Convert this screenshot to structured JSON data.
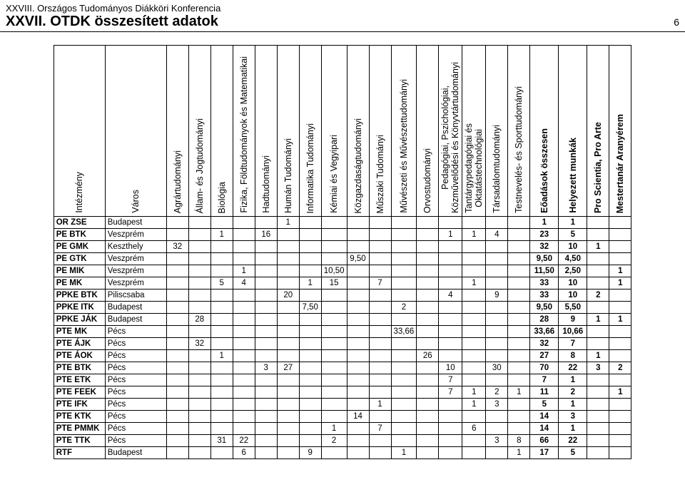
{
  "header": {
    "line1": "XXVIII. Országos Tudományos Diákköri Konferencia",
    "line2": "XXVII. OTDK összesített adatok",
    "page_no": "6"
  },
  "columns": [
    {
      "label": "Intézmény",
      "bold": false,
      "width": "c-inst"
    },
    {
      "label": "Város",
      "bold": false,
      "width": "c-city"
    },
    {
      "label": "Agrártudományi",
      "bold": false,
      "width": "c-num"
    },
    {
      "label": "Állam- és Jogtudományi",
      "bold": false,
      "width": "c-num"
    },
    {
      "label": "Biológia",
      "bold": false,
      "width": "c-num"
    },
    {
      "label": "Fizika, Földtudományok és Matematikai",
      "bold": false,
      "width": "c-num"
    },
    {
      "label": "Hadtudományi",
      "bold": false,
      "width": "c-num"
    },
    {
      "label": "Humán Tudományi",
      "bold": false,
      "width": "c-num"
    },
    {
      "label": "Informatika Tudományi",
      "bold": false,
      "width": "c-num"
    },
    {
      "label": "Kémiai és Vegyipari",
      "bold": false,
      "width": "c-num"
    },
    {
      "label": "Közgazdaságtudományi",
      "bold": false,
      "width": "c-num"
    },
    {
      "label": "Műszaki Tudományi",
      "bold": false,
      "width": "c-num"
    },
    {
      "label": "Művészeti és Művészettudományi",
      "bold": false,
      "width": "c-num"
    },
    {
      "label": "Orvostudományi",
      "bold": false,
      "width": "c-num"
    },
    {
      "label": "Pedagógiai, Pszichológiai,\nKözművelődési és Könyvtártudományi",
      "bold": false,
      "width": "c-num"
    },
    {
      "label": "Tantárgypedagógiai és\nOktatástechnológiai",
      "bold": false,
      "width": "c-num"
    },
    {
      "label": "Társadalomtudományi",
      "bold": false,
      "width": "c-num"
    },
    {
      "label": "Testnevelés- és Sporttudományi",
      "bold": false,
      "width": "c-num"
    },
    {
      "label": "Eőadások összesen",
      "bold": true,
      "width": "c-wide"
    },
    {
      "label": "Helyezett munkák",
      "bold": true,
      "width": "c-wide"
    },
    {
      "label": "Pro Scientia, Pro Arte",
      "bold": true,
      "width": "c-num"
    },
    {
      "label": "Mestertanár Aranyérem",
      "bold": true,
      "width": "c-num"
    }
  ],
  "rows": [
    {
      "inst": "OR ZSE",
      "city": "Budapest",
      "v": [
        "",
        "",
        "",
        "",
        "",
        "1",
        "",
        "",
        "",
        "",
        "",
        "",
        "",
        "",
        "",
        "",
        "1",
        "1",
        "",
        ""
      ]
    },
    {
      "inst": "PE BTK",
      "city": "Veszprém",
      "v": [
        "",
        "",
        "1",
        "",
        "16",
        "",
        "",
        "",
        "",
        "",
        "",
        "",
        "1",
        "1",
        "4",
        "",
        "23",
        "5",
        "",
        ""
      ]
    },
    {
      "inst": "PE GMK",
      "city": "Keszthely",
      "v": [
        "32",
        "",
        "",
        "",
        "",
        "",
        "",
        "",
        "",
        "",
        "",
        "",
        "",
        "",
        "",
        "",
        "32",
        "10",
        "1",
        ""
      ]
    },
    {
      "inst": "PE GTK",
      "city": "Veszprém",
      "v": [
        "",
        "",
        "",
        "",
        "",
        "",
        "",
        "",
        "9,50",
        "",
        "",
        "",
        "",
        "",
        "",
        "",
        "9,50",
        "4,50",
        "",
        ""
      ]
    },
    {
      "inst": "PE MIK",
      "city": "Veszprém",
      "v": [
        "",
        "",
        "",
        "1",
        "",
        "",
        "",
        "10,50",
        "",
        "",
        "",
        "",
        "",
        "",
        "",
        "",
        "11,50",
        "2,50",
        "",
        "1"
      ]
    },
    {
      "inst": "PE MK",
      "city": "Veszprém",
      "v": [
        "",
        "",
        "5",
        "4",
        "",
        "",
        "1",
        "15",
        "",
        "7",
        "",
        "",
        "",
        "1",
        "",
        "",
        "33",
        "10",
        "",
        "1"
      ]
    },
    {
      "inst": "PPKE BTK",
      "city": "Piliscsaba",
      "v": [
        "",
        "",
        "",
        "",
        "",
        "20",
        "",
        "",
        "",
        "",
        "",
        "",
        "4",
        "",
        "9",
        "",
        "33",
        "10",
        "2",
        ""
      ]
    },
    {
      "inst": "PPKE ITK",
      "city": "Budapest",
      "v": [
        "",
        "",
        "",
        "",
        "",
        "",
        "7,50",
        "",
        "",
        "",
        "2",
        "",
        "",
        "",
        "",
        "",
        "9,50",
        "5,50",
        "",
        ""
      ]
    },
    {
      "inst": "PPKE JÁK",
      "city": "Budapest",
      "v": [
        "",
        "28",
        "",
        "",
        "",
        "",
        "",
        "",
        "",
        "",
        "",
        "",
        "",
        "",
        "",
        "",
        "28",
        "9",
        "1",
        "1"
      ]
    },
    {
      "inst": "PTE  MK",
      "city": "Pécs",
      "v": [
        "",
        "",
        "",
        "",
        "",
        "",
        "",
        "",
        "",
        "",
        "33,66",
        "",
        "",
        "",
        "",
        "",
        "33,66",
        "10,66",
        "",
        ""
      ]
    },
    {
      "inst": "PTE ÁJK",
      "city": "Pécs",
      "v": [
        "",
        "32",
        "",
        "",
        "",
        "",
        "",
        "",
        "",
        "",
        "",
        "",
        "",
        "",
        "",
        "",
        "32",
        "7",
        "",
        ""
      ]
    },
    {
      "inst": "PTE ÁOK",
      "city": "Pécs",
      "v": [
        "",
        "",
        "1",
        "",
        "",
        "",
        "",
        "",
        "",
        "",
        "",
        "26",
        "",
        "",
        "",
        "",
        "27",
        "8",
        "1",
        ""
      ]
    },
    {
      "inst": "PTE BTK",
      "city": "Pécs",
      "v": [
        "",
        "",
        "",
        "",
        "3",
        "27",
        "",
        "",
        "",
        "",
        "",
        "",
        "10",
        "",
        "30",
        "",
        "70",
        "22",
        "3",
        "2"
      ]
    },
    {
      "inst": "PTE ETK",
      "city": "Pécs",
      "v": [
        "",
        "",
        "",
        "",
        "",
        "",
        "",
        "",
        "",
        "",
        "",
        "",
        "7",
        "",
        "",
        "",
        "7",
        "1",
        "",
        ""
      ]
    },
    {
      "inst": "PTE FEEK",
      "city": "Pécs",
      "v": [
        "",
        "",
        "",
        "",
        "",
        "",
        "",
        "",
        "",
        "",
        "",
        "",
        "7",
        "1",
        "2",
        "1",
        "11",
        "2",
        "",
        "1"
      ]
    },
    {
      "inst": "PTE IFK",
      "city": "Pécs",
      "v": [
        "",
        "",
        "",
        "",
        "",
        "",
        "",
        "",
        "",
        "1",
        "",
        "",
        "",
        "1",
        "3",
        "",
        "5",
        "1",
        "",
        ""
      ]
    },
    {
      "inst": "PTE KTK",
      "city": "Pécs",
      "v": [
        "",
        "",
        "",
        "",
        "",
        "",
        "",
        "",
        "14",
        "",
        "",
        "",
        "",
        "",
        "",
        "",
        "14",
        "3",
        "",
        ""
      ]
    },
    {
      "inst": "PTE PMMK",
      "city": "Pécs",
      "v": [
        "",
        "",
        "",
        "",
        "",
        "",
        "",
        "1",
        "",
        "7",
        "",
        "",
        "",
        "6",
        "",
        "",
        "14",
        "1",
        "",
        ""
      ]
    },
    {
      "inst": "PTE TTK",
      "city": "Pécs",
      "v": [
        "",
        "",
        "31",
        "22",
        "",
        "",
        "",
        "2",
        "",
        "",
        "",
        "",
        "",
        "",
        "3",
        "8",
        "66",
        "22",
        "",
        ""
      ]
    },
    {
      "inst": "RTF",
      "city": "Budapest",
      "v": [
        "",
        "",
        "",
        "6",
        "",
        "",
        "9",
        "",
        "",
        "",
        "1",
        "",
        "",
        "",
        "",
        "1",
        "17",
        "5",
        "",
        ""
      ]
    }
  ]
}
